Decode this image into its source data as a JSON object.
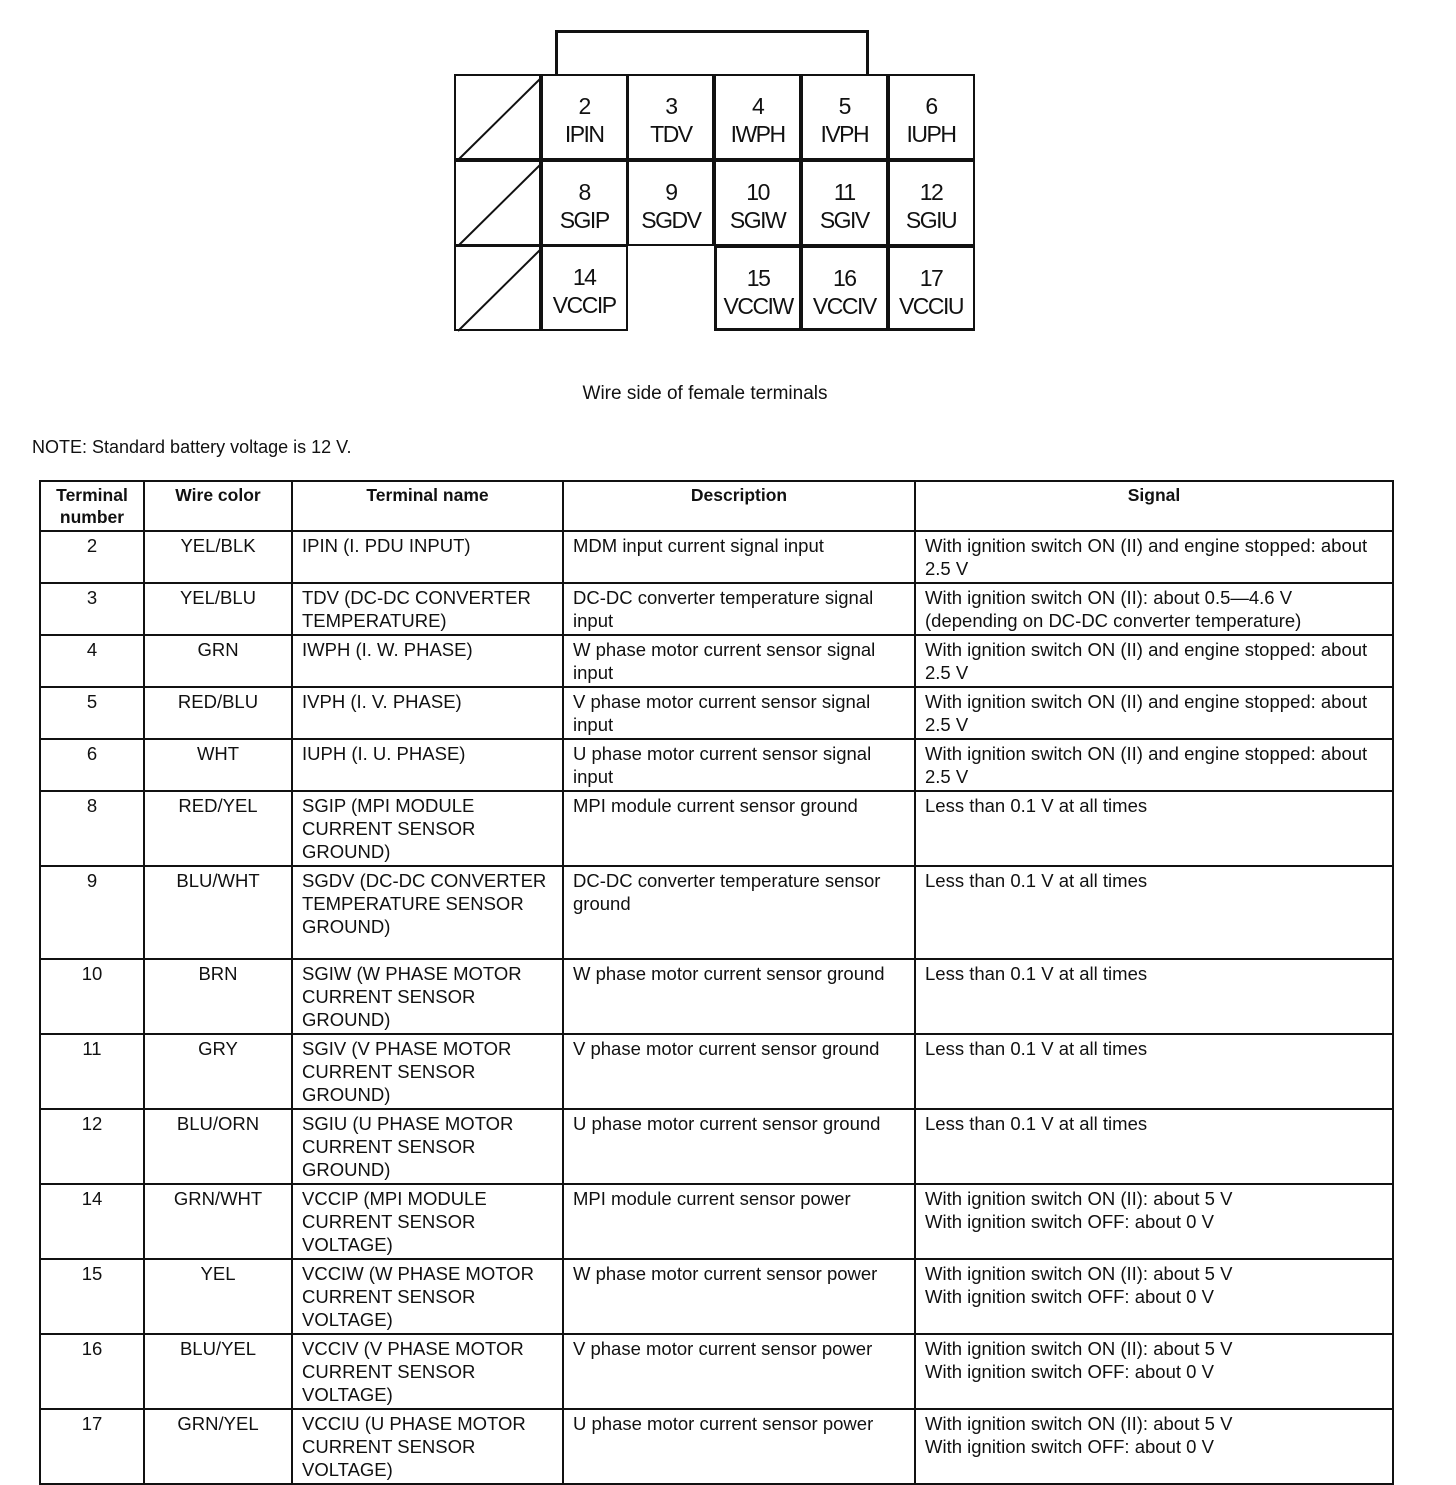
{
  "connector": {
    "caption": "Wire side of female terminals",
    "cells": [
      {
        "num": "2",
        "name": "IPIN"
      },
      {
        "num": "3",
        "name": "TDV"
      },
      {
        "num": "4",
        "name": "IWPH"
      },
      {
        "num": "5",
        "name": "IVPH"
      },
      {
        "num": "6",
        "name": "IUPH"
      },
      {
        "num": "8",
        "name": "SGIP"
      },
      {
        "num": "9",
        "name": "SGDV"
      },
      {
        "num": "10",
        "name": "SGIW"
      },
      {
        "num": "11",
        "name": "SGIV"
      },
      {
        "num": "12",
        "name": "SGIU"
      },
      {
        "num": "14",
        "name": "VCCIP"
      },
      {
        "num": "15",
        "name": "VCCIW"
      },
      {
        "num": "16",
        "name": "VCCIV"
      },
      {
        "num": "17",
        "name": "VCCIU"
      }
    ]
  },
  "note": "NOTE: Standard battery voltage is 12 V.",
  "table": {
    "headers": [
      "Terminal number",
      "Wire color",
      "Terminal name",
      "Description",
      "Signal"
    ],
    "rows": [
      [
        "2",
        "YEL/BLK",
        "IPIN (I. PDU INPUT)",
        "MDM input current signal input",
        "With ignition switch ON (II) and engine stopped: about 2.5 V"
      ],
      [
        "3",
        "YEL/BLU",
        "TDV (DC-DC CONVERTER TEMPERATURE)",
        "DC-DC converter temperature signal input",
        "With ignition switch ON (II): about 0.5—4.6 V (depending on DC-DC converter temperature)"
      ],
      [
        "4",
        "GRN",
        "IWPH (I. W. PHASE)",
        "W phase motor current sensor signal input",
        "With ignition switch ON (II) and engine stopped: about 2.5 V"
      ],
      [
        "5",
        "RED/BLU",
        "IVPH (I. V. PHASE)",
        "V phase motor current sensor signal input",
        "With ignition switch ON (II) and engine stopped: about 2.5 V"
      ],
      [
        "6",
        "WHT",
        "IUPH (I. U. PHASE)",
        "U phase motor current sensor signal input",
        "With ignition switch ON (II) and engine stopped: about 2.5 V"
      ],
      [
        "8",
        "RED/YEL",
        "SGIP (MPI MODULE CURRENT SENSOR GROUND)",
        "MPI module current sensor ground",
        "Less than 0.1 V at all times"
      ],
      [
        "9",
        "BLU/WHT",
        "SGDV (DC-DC CONVERTER TEMPERATURE SENSOR GROUND)",
        "DC-DC converter temperature sensor ground",
        "Less than 0.1 V at all times"
      ],
      [
        "10",
        "BRN",
        "SGIW (W PHASE MOTOR CURRENT SENSOR GROUND)",
        "W phase motor current sensor ground",
        "Less than 0.1 V at all times"
      ],
      [
        "11",
        "GRY",
        "SGIV (V PHASE MOTOR CURRENT SENSOR GROUND)",
        "V phase motor current sensor ground",
        "Less than 0.1 V at all times"
      ],
      [
        "12",
        "BLU/ORN",
        "SGIU (U PHASE MOTOR CURRENT SENSOR GROUND)",
        "U phase motor current sensor ground",
        "Less than 0.1 V at all times"
      ],
      [
        "14",
        "GRN/WHT",
        "VCCIP (MPI MODULE CURRENT SENSOR VOLTAGE)",
        "MPI module current sensor power",
        "With ignition switch ON (II): about 5 V\nWith ignition switch OFF: about 0 V"
      ],
      [
        "15",
        "YEL",
        "VCCIW (W PHASE MOTOR CURRENT SENSOR VOLTAGE)",
        "W phase motor current sensor power",
        "With ignition switch ON (II): about 5 V\nWith ignition switch OFF: about 0 V"
      ],
      [
        "16",
        "BLU/YEL",
        "VCCIV (V PHASE MOTOR CURRENT SENSOR VOLTAGE)",
        "V phase motor current sensor power",
        "With ignition switch ON (II): about 5 V\nWith ignition switch OFF: about 0 V"
      ],
      [
        "17",
        "GRN/YEL",
        "VCCIU (U PHASE MOTOR CURRENT SENSOR VOLTAGE)",
        "U phase motor current sensor power",
        "With ignition switch ON (II): about 5 V\nWith ignition switch OFF: about 0 V"
      ]
    ]
  }
}
